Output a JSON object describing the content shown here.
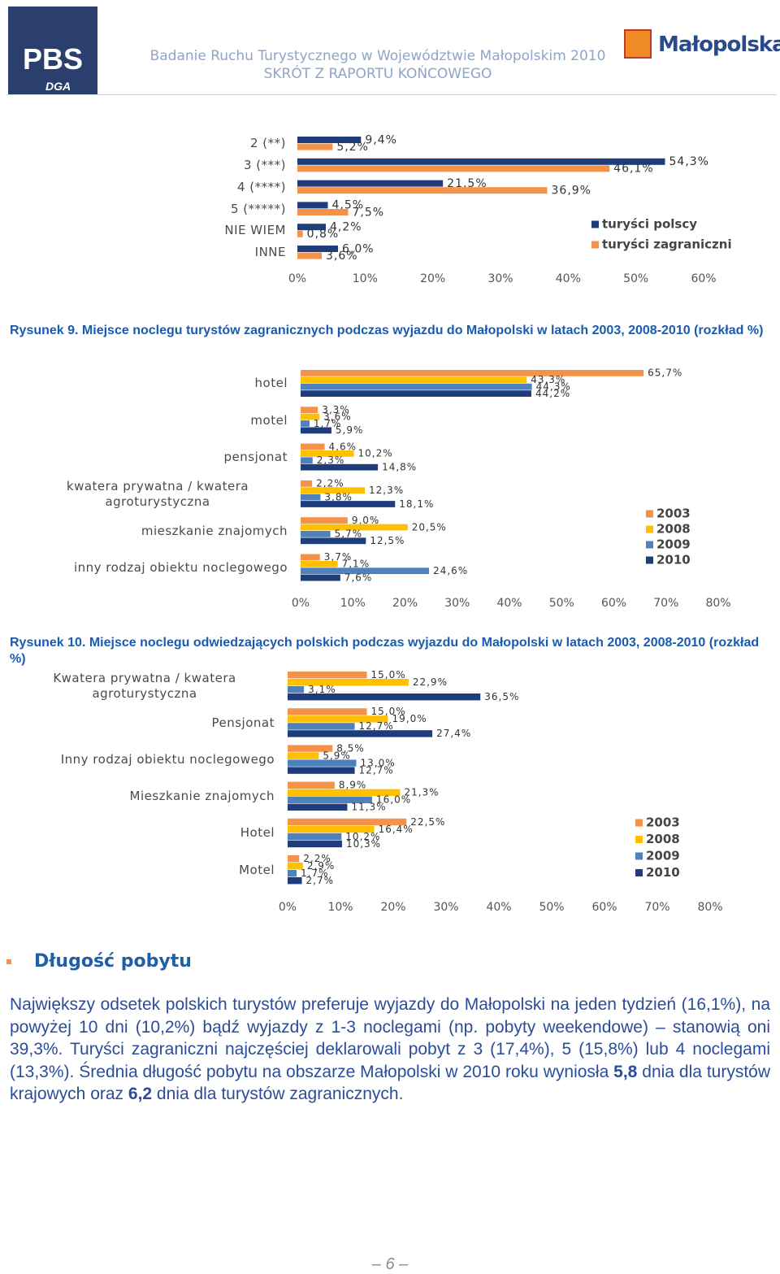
{
  "header": {
    "logo_left": "PBS",
    "logo_left_sub": "DGA",
    "title": "Badanie Ruchu Turystycznego w Województwie Małopolskim 2010",
    "subtitle": "SKRÓT Z RAPORTU KOŃCOWEGO",
    "logo_right": "Małopolska"
  },
  "chart_data": [
    {
      "type": "bar",
      "orientation": "horizontal",
      "legend": "right",
      "grid": false,
      "categories": [
        "2 (**)",
        "3 (***)",
        "4 (****)",
        "5 (*****)",
        "NIE WIEM",
        "INNE"
      ],
      "series": [
        {
          "name": "turyści polscy",
          "color": "#1f3d7a",
          "values": [
            9.4,
            54.3,
            21.5,
            4.5,
            4.2,
            6.0
          ],
          "value_labels": [
            "9,4%",
            "54,3%",
            "21,5%",
            "4,5%",
            "4,2%",
            "6,0%"
          ]
        },
        {
          "name": "turyści zagraniczni",
          "color": "#f4924a",
          "values": [
            5.2,
            46.1,
            36.9,
            7.5,
            0.8,
            3.6
          ],
          "value_labels": [
            "5,2%",
            "46,1%",
            "36,9%",
            "7,5%",
            "0,8%",
            "3,6%"
          ]
        }
      ],
      "xlim": [
        0,
        60
      ],
      "xticks": [
        {
          "value": 0,
          "label": "0%"
        },
        {
          "value": 10,
          "label": "10%"
        },
        {
          "value": 20,
          "label": "20%"
        },
        {
          "value": 30,
          "label": "30%"
        },
        {
          "value": 40,
          "label": "40%"
        },
        {
          "value": 50,
          "label": "50%"
        },
        {
          "value": 60,
          "label": "60%"
        }
      ]
    },
    {
      "type": "bar",
      "orientation": "horizontal",
      "legend": "right",
      "grid": false,
      "title": "Rysunek 9. Miejsce noclegu turystów zagranicznych podczas wyjazdu do Małopolski w latach 2003, 2008-2010 (rozkład %)",
      "categories": [
        "hotel",
        "motel",
        "pensjonat",
        "kwatera prywatna / kwatera agroturystyczna",
        "mieszkanie znajomych",
        "inny rodzaj obiektu noclegowego"
      ],
      "series": [
        {
          "name": "2003",
          "color": "#f4924a",
          "values": [
            65.7,
            3.3,
            4.6,
            2.2,
            9.0,
            3.7
          ],
          "value_labels": [
            "65,7%",
            "3,3%",
            "4,6%",
            "2,2%",
            "9,0%",
            "3,7%"
          ]
        },
        {
          "name": "2008",
          "color": "#ffc000",
          "values": [
            43.3,
            3.6,
            10.2,
            12.3,
            20.5,
            7.1
          ],
          "value_labels": [
            "43,3%",
            "3,6%",
            "10,2%",
            "12,3%",
            "20,5%",
            "7,1%"
          ]
        },
        {
          "name": "2009",
          "color": "#4f81bd",
          "values": [
            44.3,
            1.7,
            2.3,
            3.8,
            5.7,
            24.6
          ],
          "value_labels": [
            "44,3%",
            "1,7%",
            "2,3%",
            "3,8%",
            "5,7%",
            "24,6%"
          ]
        },
        {
          "name": "2010",
          "color": "#1f3d7a",
          "values": [
            44.2,
            5.9,
            14.8,
            18.1,
            12.5,
            7.6
          ],
          "value_labels": [
            "44,2%",
            "5,9%",
            "14,8%",
            "18,1%",
            "12,5%",
            "7,6%"
          ]
        }
      ],
      "xlim": [
        0,
        80
      ],
      "xticks": [
        {
          "value": 0,
          "label": "0%"
        },
        {
          "value": 10,
          "label": "10%"
        },
        {
          "value": 20,
          "label": "20%"
        },
        {
          "value": 30,
          "label": "30%"
        },
        {
          "value": 40,
          "label": "40%"
        },
        {
          "value": 50,
          "label": "50%"
        },
        {
          "value": 60,
          "label": "60%"
        },
        {
          "value": 70,
          "label": "70%"
        },
        {
          "value": 80,
          "label": "80%"
        }
      ]
    },
    {
      "type": "bar",
      "orientation": "horizontal",
      "legend": "right",
      "grid": false,
      "title": "Rysunek 10. Miejsce noclegu odwiedzających polskich podczas wyjazdu do Małopolski w latach 2003, 2008-2010 (rozkład %)",
      "categories": [
        "Kwatera prywatna / kwatera agroturystyczna",
        "Pensjonat",
        "Inny rodzaj obiektu noclegowego",
        "Mieszkanie znajomych",
        "Hotel",
        "Motel"
      ],
      "series": [
        {
          "name": "2003",
          "color": "#f4924a",
          "values": [
            15.0,
            15.0,
            8.5,
            8.9,
            22.5,
            2.2
          ],
          "value_labels": [
            "15,0%",
            "15,0%",
            "8,5%",
            "8,9%",
            "22,5%",
            "2,2%"
          ]
        },
        {
          "name": "2008",
          "color": "#ffc000",
          "values": [
            22.9,
            19.0,
            5.9,
            21.3,
            16.4,
            2.9
          ],
          "value_labels": [
            "22,9%",
            "19,0%",
            "5,9%",
            "21,3%",
            "16,4%",
            "2,9%"
          ]
        },
        {
          "name": "2009",
          "color": "#4f81bd",
          "values": [
            3.1,
            12.7,
            13.0,
            16.0,
            10.2,
            1.7
          ],
          "value_labels": [
            "3,1%",
            "12,7%",
            "13,0%",
            "16,0%",
            "10,2%",
            "1,7%"
          ]
        },
        {
          "name": "2010",
          "color": "#1f3d7a",
          "values": [
            36.5,
            27.4,
            12.7,
            11.3,
            10.3,
            2.7
          ],
          "value_labels": [
            "36,5%",
            "27,4%",
            "12,7%",
            "11,3%",
            "10,3%",
            "2,7%"
          ]
        }
      ],
      "xlim": [
        0,
        80
      ],
      "xticks": [
        {
          "value": 0,
          "label": "0%"
        },
        {
          "value": 10,
          "label": "10%"
        },
        {
          "value": 20,
          "label": "20%"
        },
        {
          "value": 30,
          "label": "30%"
        },
        {
          "value": 40,
          "label": "40%"
        },
        {
          "value": 50,
          "label": "50%"
        },
        {
          "value": 60,
          "label": "60%"
        },
        {
          "value": 70,
          "label": "70%"
        },
        {
          "value": 80,
          "label": "80%"
        }
      ]
    }
  ],
  "section": {
    "heading": "Długość pobytu",
    "paragraph": [
      "Największy odsetek polskich turystów preferuje wyjazdy do Małopolski na jeden tydzień (16,1%), na powyżej 10 dni (10,2%) bądź wyjazdy z 1-3 noclegami (np. pobyty weekendowe) – stanowią oni 39,3%. Turyści zagraniczni najczęściej deklarowali pobyt z 3 (17,4%), 5 (15,8%) lub 4 noclegami (13,3%). Średnia długość pobytu na obszarze Małopolski w 2010 roku wyniosła ",
      "5,8",
      " dnia dla turystów krajowych oraz ",
      "6,2",
      " dnia dla turystów zagranicznych."
    ]
  },
  "page_number": "6"
}
